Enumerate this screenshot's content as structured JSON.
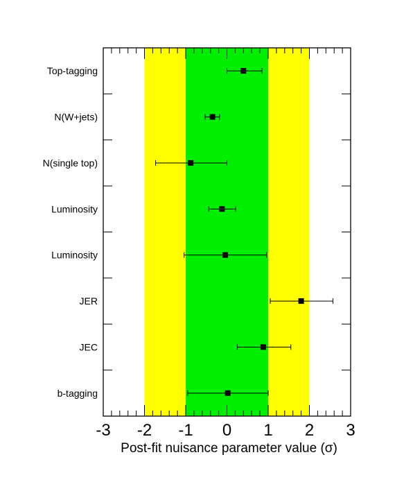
{
  "chart_data": {
    "type": "scatter",
    "orientation": "horizontal-error-bars",
    "title": "",
    "xlabel": "Post-fit nuisance parameter value (σ)",
    "ylabel": "",
    "xlim": [
      -3,
      3
    ],
    "x_ticks": [
      "-3",
      "-2",
      "-1",
      "0",
      "1",
      "2",
      "3"
    ],
    "grid": false,
    "legend": "none",
    "bands": [
      {
        "from": -2,
        "to": 2,
        "color": "#ffff00"
      },
      {
        "from": -1,
        "to": 1,
        "color": "#00ee00"
      }
    ],
    "categories": [
      "Top-tagging",
      "N(W+jets)",
      "N(single top)",
      "Luminosity",
      "Luminosity",
      "JER",
      "JEC",
      "b-tagging"
    ],
    "points": [
      {
        "label": "Top-tagging",
        "value": 0.4,
        "err_low": 0.4,
        "err_high": 0.45
      },
      {
        "label": "N(W+jets)",
        "value": -0.35,
        "err_low": 0.18,
        "err_high": 0.17
      },
      {
        "label": "N(single top)",
        "value": -0.88,
        "err_low": 0.85,
        "err_high": 0.88
      },
      {
        "label": "Luminosity",
        "value": -0.12,
        "err_low": 0.32,
        "err_high": 0.33
      },
      {
        "label": "Luminosity",
        "value": -0.04,
        "err_low": 1.0,
        "err_high": 1.0
      },
      {
        "label": "JER",
        "value": 1.8,
        "err_low": 0.75,
        "err_high": 0.77
      },
      {
        "label": "JEC",
        "value": 0.88,
        "err_low": 0.63,
        "err_high": 0.67
      },
      {
        "label": "b-tagging",
        "value": 0.02,
        "err_low": 0.97,
        "err_high": 0.98
      }
    ],
    "colors": {
      "marker": "#000000",
      "frame": "#000000"
    }
  }
}
